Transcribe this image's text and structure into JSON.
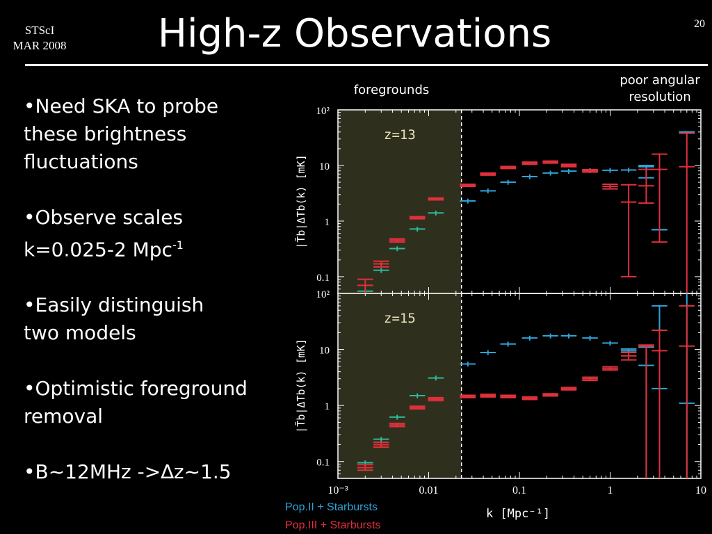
{
  "header": {
    "org_line1": "STScI",
    "org_line2": "MAR 2008",
    "title": "High-z Observations",
    "page_number": "20"
  },
  "bullets": [
    {
      "text": "•Need SKA to probe\nthese brightness\nfluctuations"
    },
    {
      "text": "•Observe scales\nk=0.025-2 Mpc",
      "sup": "-1"
    },
    {
      "text": "•Easily distinguish\ntwo models"
    },
    {
      "text": "•Optimistic foreground\nremoval"
    },
    {
      "text": "•B~12MHz ->∆z~1.5"
    }
  ],
  "annotations": {
    "foregrounds": "foregrounds",
    "poor_resolution_line1": "poor angular",
    "poor_resolution_line2": "resolution"
  },
  "colors": {
    "pop2": "#2ea3d6",
    "pop2_low": "#2fb89a",
    "pop3": "#e0303c",
    "shade": "#2f2f1d",
    "frame": "#ffffff"
  },
  "chart_data": {
    "type": "scatter",
    "xscale": "log",
    "yscale": "log",
    "xlim": [
      0.001,
      10
    ],
    "ylim": [
      0.05,
      100
    ],
    "xlabel": "k [Mpc⁻¹]",
    "ylabel": "|T̄b|Δ̄Tb(k) [mK]",
    "x_ticks": [
      "10⁻³",
      "0.01",
      "0.1",
      "1",
      "10"
    ],
    "y_ticks": [
      "10²",
      "10",
      "1",
      "0.1"
    ],
    "foreground_cut_k": 0.023,
    "legend": [
      "Pop.II + Starbursts",
      "Pop.III + Starbursts"
    ],
    "panels": [
      {
        "label": "z=13",
        "series": [
          {
            "name": "Pop.II + Starbursts",
            "points": [
              [
                0.002,
                0.055
              ],
              [
                0.003,
                0.13
              ],
              [
                0.0045,
                0.32
              ],
              [
                0.0075,
                0.72
              ],
              [
                0.012,
                1.4
              ],
              [
                0.027,
                2.3
              ],
              [
                0.045,
                3.5
              ],
              [
                0.075,
                5.0
              ],
              [
                0.13,
                6.3
              ],
              [
                0.22,
                7.3
              ],
              [
                0.35,
                7.9
              ],
              [
                0.6,
                8.1
              ],
              [
                1.0,
                8.2
              ],
              [
                1.6,
                8.3
              ],
              [
                2.5,
                9.5
              ],
              [
                3.5,
                0.7
              ],
              [
                7.0,
                40
              ]
            ],
            "errors": [
              [
                0.002,
                0.0,
                0.0
              ],
              [
                0.003,
                0.0,
                0.0
              ],
              [
                0.0045,
                0.0,
                0.0
              ],
              [
                0.0075,
                0.0,
                0.0
              ],
              [
                0.012,
                0.0,
                0.0
              ],
              [
                0.027,
                0.0,
                0.0
              ],
              [
                0.045,
                0.0,
                0.0
              ],
              [
                0.075,
                0.0,
                0.0
              ],
              [
                0.13,
                0.0,
                0.0
              ],
              [
                0.22,
                0.0,
                0.0
              ],
              [
                0.35,
                0.0,
                0.0
              ],
              [
                0.6,
                0.0,
                0.0
              ],
              [
                1.0,
                0.0,
                0.0
              ],
              [
                1.6,
                0.0,
                0.0
              ],
              [
                2.5,
                6.0,
                10.0
              ],
              [
                3.5,
                0.7,
                0.7
              ],
              [
                7.0,
                40.0,
                40.0
              ]
            ]
          },
          {
            "name": "Pop.III + Starbursts",
            "points": [
              [
                0.002,
                0.07
              ],
              [
                0.003,
                0.17
              ],
              [
                0.0045,
                0.45
              ],
              [
                0.0075,
                1.15
              ],
              [
                0.012,
                2.5
              ],
              [
                0.027,
                4.4
              ],
              [
                0.045,
                7.0
              ],
              [
                0.075,
                9.2
              ],
              [
                0.13,
                11
              ],
              [
                0.22,
                11.5
              ],
              [
                0.35,
                10
              ],
              [
                0.6,
                8.0
              ],
              [
                1.0,
                4.2
              ],
              [
                1.6,
                2.2
              ],
              [
                2.5,
                4.3
              ],
              [
                3.5,
                8.5
              ],
              [
                7.0,
                9.5
              ]
            ],
            "errors": [
              [
                0.002,
                0.05,
                0.09
              ],
              [
                0.003,
                0.15,
                0.19
              ],
              [
                0.0045,
                0.42,
                0.48
              ],
              [
                0.0075,
                1.1,
                1.2
              ],
              [
                0.012,
                2.4,
                2.6
              ],
              [
                0.027,
                4.2,
                4.6
              ],
              [
                0.045,
                6.7,
                7.3
              ],
              [
                0.075,
                8.8,
                9.6
              ],
              [
                0.13,
                10.5,
                11.5
              ],
              [
                0.22,
                11,
                12
              ],
              [
                0.35,
                9.5,
                10.5
              ],
              [
                0.6,
                7.6,
                8.4
              ],
              [
                1.0,
                3.8,
                4.6
              ],
              [
                1.6,
                0.1,
                4.5
              ],
              [
                2.5,
                2.1,
                8.5
              ],
              [
                3.5,
                0.42,
                16
              ],
              [
                7.0,
                0.05,
                38
              ]
            ]
          }
        ]
      },
      {
        "label": "z=15",
        "series": [
          {
            "name": "Pop.II + Starbursts",
            "points": [
              [
                0.002,
                0.095
              ],
              [
                0.003,
                0.25
              ],
              [
                0.0045,
                0.62
              ],
              [
                0.0075,
                1.5
              ],
              [
                0.012,
                3.1
              ],
              [
                0.027,
                5.5
              ],
              [
                0.045,
                8.8
              ],
              [
                0.075,
                12.5
              ],
              [
                0.13,
                16
              ],
              [
                0.22,
                17.5
              ],
              [
                0.35,
                17.5
              ],
              [
                0.6,
                16
              ],
              [
                1.0,
                13
              ],
              [
                1.6,
                9.5
              ],
              [
                2.5,
                5.2
              ],
              [
                3.5,
                2.0
              ],
              [
                7.0,
                1.1
              ]
            ],
            "errors": [
              [
                0.002,
                0.0,
                0.0
              ],
              [
                0.003,
                0.0,
                0.0
              ],
              [
                0.0045,
                0.0,
                0.0
              ],
              [
                0.0075,
                0.0,
                0.0
              ],
              [
                0.012,
                0.0,
                0.0
              ],
              [
                0.027,
                0.0,
                0.0
              ],
              [
                0.045,
                0.0,
                0.0
              ],
              [
                0.075,
                0.0,
                0.0
              ],
              [
                0.13,
                0.0,
                0.0
              ],
              [
                0.22,
                0.0,
                0.0
              ],
              [
                0.35,
                0.0,
                0.0
              ],
              [
                0.6,
                0.0,
                0.0
              ],
              [
                1.0,
                0.0,
                0.0
              ],
              [
                1.6,
                8.8,
                10.2
              ],
              [
                2.5,
                0.05,
                11
              ],
              [
                3.5,
                0.05,
                60
              ],
              [
                7.0,
                0.05,
                100
              ]
            ]
          },
          {
            "name": "Pop.III + Starbursts",
            "points": [
              [
                0.002,
                0.078
              ],
              [
                0.003,
                0.2
              ],
              [
                0.0045,
                0.45
              ],
              [
                0.0075,
                0.92
              ],
              [
                0.012,
                1.3
              ],
              [
                0.027,
                1.45
              ],
              [
                0.045,
                1.5
              ],
              [
                0.075,
                1.45
              ],
              [
                0.13,
                1.35
              ],
              [
                0.22,
                1.55
              ],
              [
                0.35,
                2.0
              ],
              [
                0.6,
                3.0
              ],
              [
                1.0,
                4.6
              ],
              [
                1.6,
                7.7
              ],
              [
                2.5,
                11.5
              ],
              [
                3.5,
                9.5
              ],
              [
                7.0,
                11.5
              ]
            ],
            "errors": [
              [
                0.002,
                0.07,
                0.088
              ],
              [
                0.003,
                0.18,
                0.22
              ],
              [
                0.0045,
                0.42,
                0.48
              ],
              [
                0.0075,
                0.87,
                0.97
              ],
              [
                0.012,
                1.22,
                1.38
              ],
              [
                0.027,
                1.38,
                1.52
              ],
              [
                0.045,
                1.42,
                1.58
              ],
              [
                0.075,
                1.38,
                1.52
              ],
              [
                0.13,
                1.28,
                1.42
              ],
              [
                0.22,
                1.48,
                1.62
              ],
              [
                0.35,
                1.9,
                2.1
              ],
              [
                0.6,
                2.8,
                3.2
              ],
              [
                1.0,
                4.3,
                4.9
              ],
              [
                1.6,
                6.5,
                8.9
              ],
              [
                2.5,
                0.05,
                12
              ],
              [
                3.5,
                0.05,
                22
              ],
              [
                7.0,
                0.05,
                60
              ]
            ]
          }
        ]
      }
    ]
  }
}
